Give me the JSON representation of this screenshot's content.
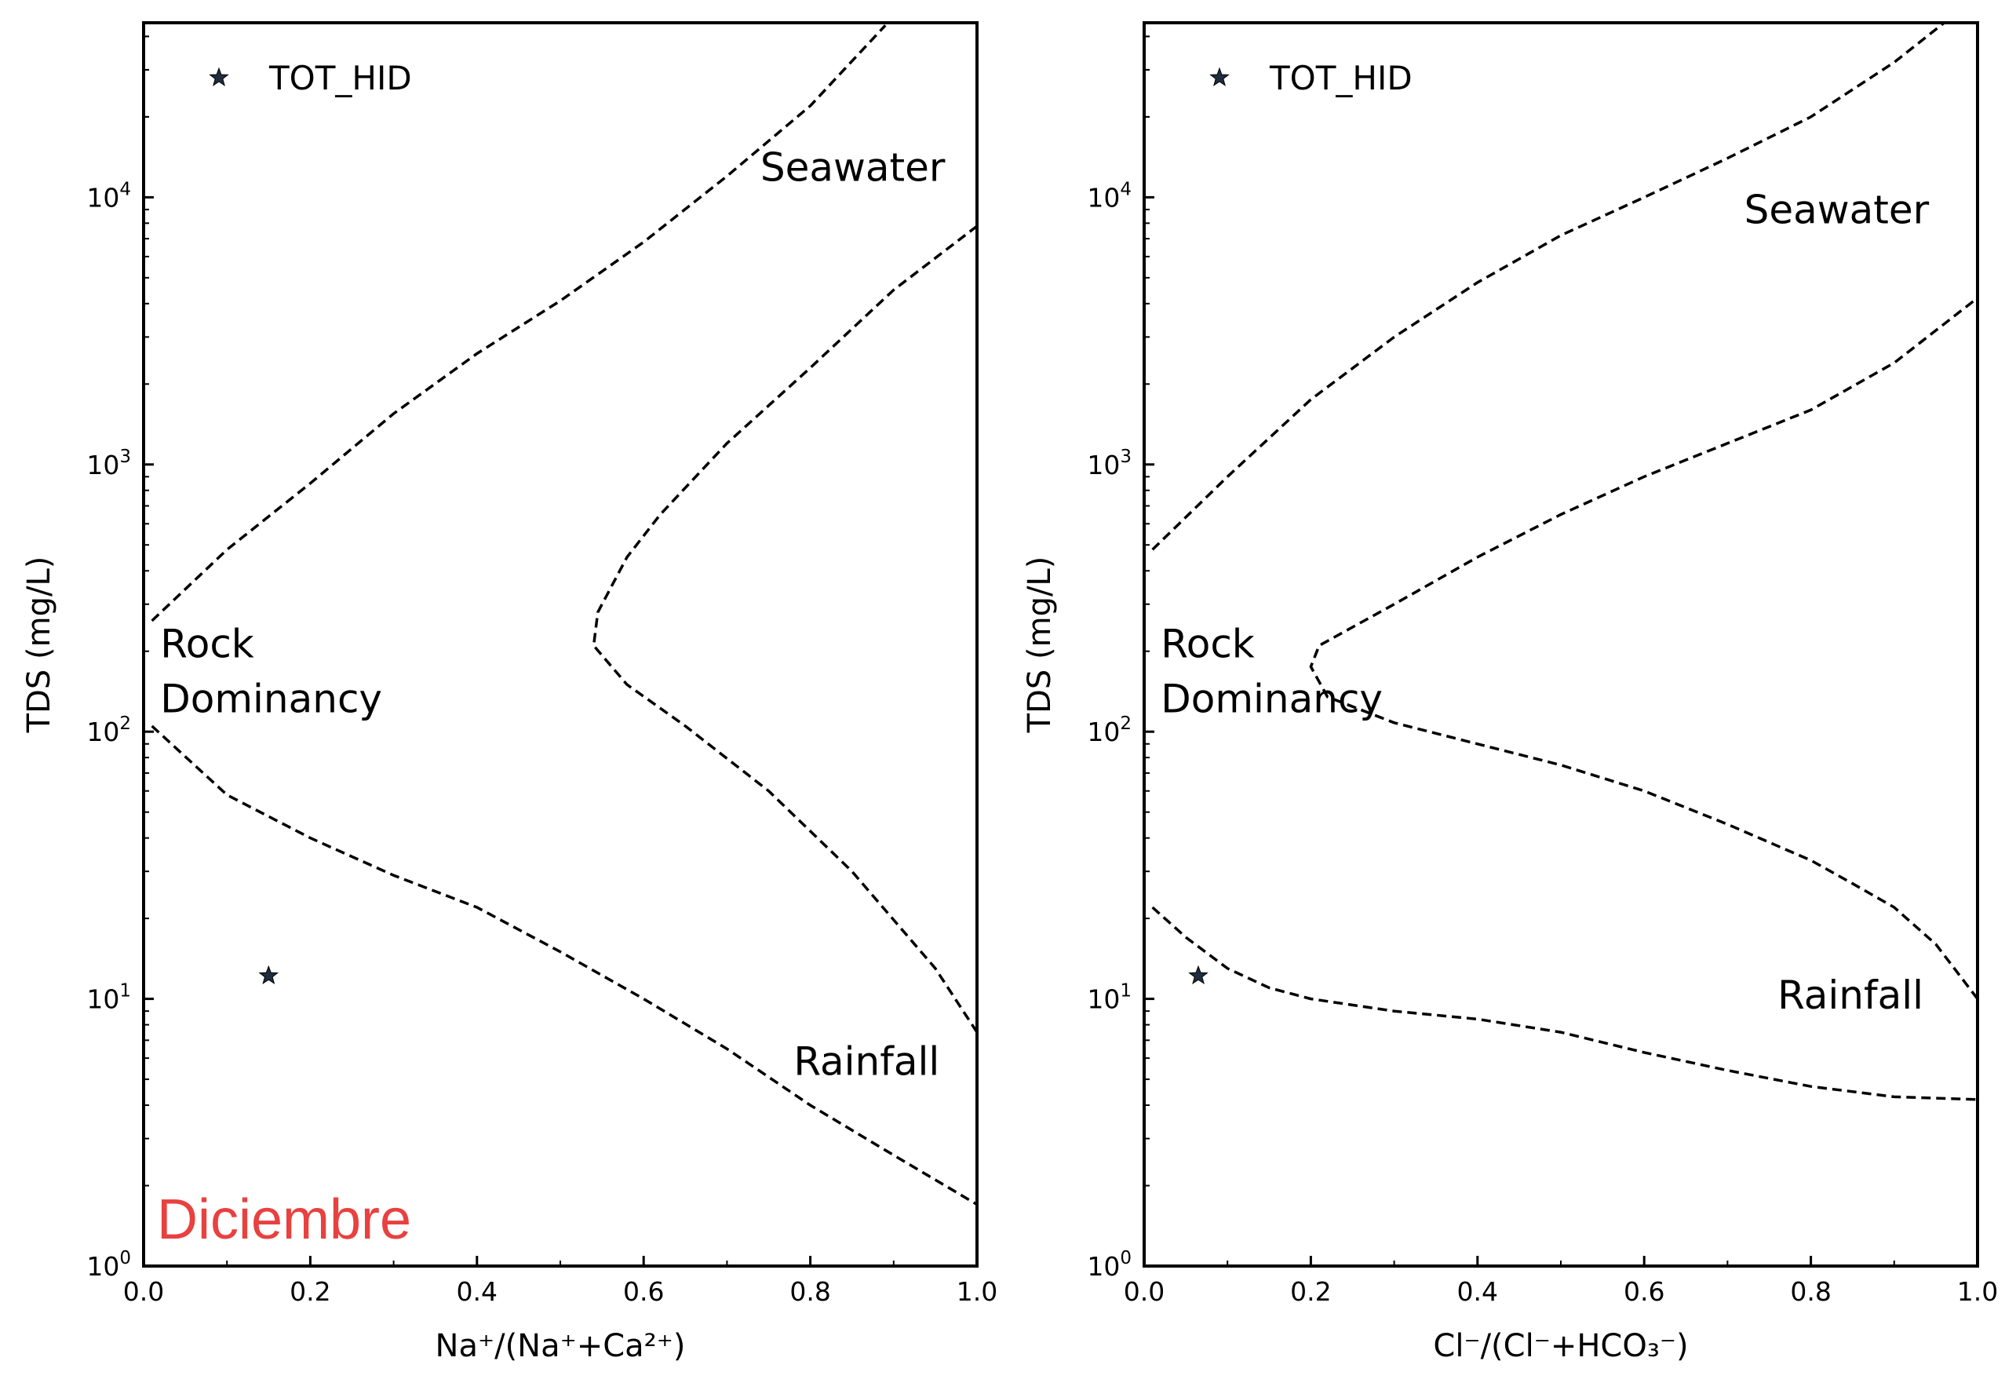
{
  "chart_data": [
    {
      "type": "scatter",
      "title": "",
      "xlabel": "Na⁺/(Na⁺+Ca²⁺)",
      "ylabel": "TDS (mg/L)",
      "xlim": [
        0.0,
        1.0
      ],
      "ylim": [
        1,
        45000
      ],
      "yscale": "log",
      "xticks": [
        "0.0",
        "0.2",
        "0.4",
        "0.6",
        "0.8",
        "1.0"
      ],
      "yticks": [
        {
          "base": "10",
          "exp": "0"
        },
        {
          "base": "10",
          "exp": "1"
        },
        {
          "base": "10",
          "exp": "2"
        },
        {
          "base": "10",
          "exp": "3"
        },
        {
          "base": "10",
          "exp": "4"
        }
      ],
      "grid": false,
      "legend_position": "top-left",
      "legend_entries": [
        "TOT_HID"
      ],
      "series": [
        {
          "name": "TOT_HID",
          "marker": "star",
          "color": "#1f2d3d",
          "points": [
            {
              "x": 0.15,
              "y": 12.2
            }
          ]
        }
      ],
      "boundaries": {
        "upper": [
          [
            0.01,
            260
          ],
          [
            0.1,
            480
          ],
          [
            0.2,
            850
          ],
          [
            0.3,
            1550
          ],
          [
            0.4,
            2600
          ],
          [
            0.5,
            4100
          ],
          [
            0.6,
            6800
          ],
          [
            0.7,
            12000
          ],
          [
            0.8,
            22000
          ],
          [
            0.89,
            44000
          ]
        ],
        "lower": [
          [
            0.01,
            105
          ],
          [
            0.1,
            58
          ],
          [
            0.2,
            40
          ],
          [
            0.3,
            29
          ],
          [
            0.4,
            22
          ],
          [
            0.5,
            15
          ],
          [
            0.6,
            10
          ],
          [
            0.7,
            6.5
          ],
          [
            0.8,
            4
          ],
          [
            0.9,
            2.6
          ],
          [
            1.0,
            1.7
          ]
        ],
        "inner": [
          [
            1.0,
            7.5
          ],
          [
            0.95,
            13
          ],
          [
            0.85,
            30
          ],
          [
            0.75,
            60
          ],
          [
            0.65,
            105
          ],
          [
            0.58,
            150
          ],
          [
            0.54,
            210
          ],
          [
            0.545,
            280
          ],
          [
            0.58,
            450
          ],
          [
            0.62,
            650
          ],
          [
            0.7,
            1200
          ],
          [
            0.8,
            2300
          ],
          [
            0.9,
            4500
          ],
          [
            1.0,
            7800
          ]
        ]
      },
      "annotations": [
        {
          "text": "Seawater",
          "x": 0.74,
          "y": 11500
        },
        {
          "text": "Rock",
          "x": 0.02,
          "y": 190
        },
        {
          "text": "Dominancy",
          "x": 0.02,
          "y": 118
        },
        {
          "text": "Rainfall",
          "x": 0.78,
          "y": 5.2
        }
      ],
      "panel_label": "Diciembre",
      "panel_label_color": "#e8413f"
    },
    {
      "type": "scatter",
      "title": "",
      "xlabel": "Cl⁻/(Cl⁻+HCO₃⁻)",
      "ylabel": "TDS (mg/L)",
      "xlim": [
        0.0,
        1.0
      ],
      "ylim": [
        1,
        45000
      ],
      "yscale": "log",
      "xticks": [
        "0.0",
        "0.2",
        "0.4",
        "0.6",
        "0.8",
        "1.0"
      ],
      "yticks": [
        {
          "base": "10",
          "exp": "0"
        },
        {
          "base": "10",
          "exp": "1"
        },
        {
          "base": "10",
          "exp": "2"
        },
        {
          "base": "10",
          "exp": "3"
        },
        {
          "base": "10",
          "exp": "4"
        }
      ],
      "grid": false,
      "legend_position": "top-left",
      "legend_entries": [
        "TOT_HID"
      ],
      "series": [
        {
          "name": "TOT_HID",
          "marker": "star",
          "color": "#1f2d3d",
          "points": [
            {
              "x": 0.065,
              "y": 12.2
            }
          ]
        }
      ],
      "boundaries": {
        "upper": [
          [
            0.01,
            480
          ],
          [
            0.1,
            900
          ],
          [
            0.2,
            1750
          ],
          [
            0.3,
            3000
          ],
          [
            0.4,
            4800
          ],
          [
            0.5,
            7200
          ],
          [
            0.6,
            10000
          ],
          [
            0.7,
            14000
          ],
          [
            0.8,
            20000
          ],
          [
            0.9,
            32000
          ],
          [
            0.96,
            45000
          ]
        ],
        "lower": [
          [
            0.01,
            22
          ],
          [
            0.05,
            17
          ],
          [
            0.1,
            13
          ],
          [
            0.15,
            11
          ],
          [
            0.2,
            10
          ],
          [
            0.3,
            9
          ],
          [
            0.4,
            8.4
          ],
          [
            0.5,
            7.5
          ],
          [
            0.6,
            6.3
          ],
          [
            0.7,
            5.4
          ],
          [
            0.8,
            4.7
          ],
          [
            0.9,
            4.3
          ],
          [
            1.0,
            4.2
          ]
        ],
        "inner": [
          [
            1.0,
            10
          ],
          [
            0.95,
            16
          ],
          [
            0.9,
            22
          ],
          [
            0.85,
            27
          ],
          [
            0.8,
            33
          ],
          [
            0.7,
            45
          ],
          [
            0.6,
            60
          ],
          [
            0.5,
            75
          ],
          [
            0.4,
            90
          ],
          [
            0.3,
            108
          ],
          [
            0.22,
            135
          ],
          [
            0.2,
            175
          ],
          [
            0.21,
            210
          ],
          [
            0.3,
            300
          ],
          [
            0.4,
            450
          ],
          [
            0.5,
            650
          ],
          [
            0.6,
            900
          ],
          [
            0.7,
            1200
          ],
          [
            0.8,
            1600
          ],
          [
            0.9,
            2400
          ],
          [
            1.0,
            4200
          ]
        ]
      },
      "annotations": [
        {
          "text": "Seawater",
          "x": 0.72,
          "y": 8000
        },
        {
          "text": "Rock",
          "x": 0.02,
          "y": 190
        },
        {
          "text": "Dominancy",
          "x": 0.02,
          "y": 118
        },
        {
          "text": "Rainfall",
          "x": 0.76,
          "y": 9.2
        }
      ]
    }
  ]
}
